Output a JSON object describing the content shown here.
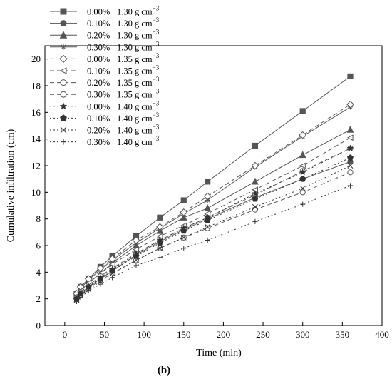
{
  "figure": {
    "panel_label": "(b)"
  },
  "chart_data": {
    "type": "line",
    "xlabel": "Time (min)",
    "ylabel": "Cumulative infiltration (cm)",
    "xlim": [
      -25,
      400
    ],
    "ylim": [
      0,
      21
    ],
    "xticks": [
      0,
      50,
      100,
      150,
      200,
      250,
      300,
      350,
      400
    ],
    "yticks": [
      0,
      2,
      4,
      6,
      8,
      10,
      12,
      14,
      16,
      18,
      20
    ],
    "grid": false,
    "legend_position": "top-left",
    "legend_unit_prefix": "g cm",
    "legend_unit_exp": "−3",
    "x": [
      15,
      20,
      30,
      45,
      60,
      90,
      120,
      150,
      180,
      240,
      300,
      360
    ],
    "series": [
      {
        "name": "0.00%",
        "density": "1.30",
        "marker": "square",
        "dash": "solid",
        "color": "#555555",
        "values": [
          2.4,
          2.9,
          3.5,
          4.4,
          5.2,
          6.7,
          8.1,
          9.4,
          10.8,
          13.5,
          16.1,
          18.7
        ]
      },
      {
        "name": "0.10%",
        "density": "1.30",
        "marker": "circle",
        "dash": "solid",
        "color": "#555555",
        "values": [
          2.1,
          2.4,
          2.9,
          3.5,
          4.1,
          5.3,
          6.3,
          7.2,
          8.0,
          9.6,
          11.0,
          12.3
        ]
      },
      {
        "name": "0.20%",
        "density": "1.30",
        "marker": "triangle",
        "dash": "solid",
        "color": "#555555",
        "values": [
          2.2,
          2.6,
          3.2,
          3.9,
          4.7,
          6.0,
          7.1,
          8.1,
          8.8,
          10.8,
          12.8,
          14.7
        ]
      },
      {
        "name": "0.30%",
        "density": "1.30",
        "marker": "star",
        "dash": "solid",
        "color": "#555555",
        "values": [
          2.3,
          2.8,
          3.4,
          4.2,
          4.9,
          6.2,
          7.3,
          8.4,
          9.4,
          11.9,
          14.2,
          16.4
        ]
      },
      {
        "name": "0.00%",
        "density": "1.35",
        "marker": "diamond-open",
        "dash": "6,4",
        "color": "#555555",
        "values": [
          2.4,
          2.9,
          3.5,
          4.3,
          5.0,
          6.4,
          7.4,
          8.5,
          9.7,
          12.0,
          14.3,
          16.6
        ]
      },
      {
        "name": "0.10%",
        "density": "1.35",
        "marker": "triangle-left-open",
        "dash": "6,4",
        "color": "#555555",
        "values": [
          2.2,
          2.6,
          3.2,
          3.9,
          4.6,
          5.7,
          6.7,
          7.5,
          8.4,
          10.2,
          12.0,
          14.1
        ]
      },
      {
        "name": "0.20%",
        "density": "1.35",
        "marker": "circle-open",
        "dash": "6,4",
        "color": "#555555",
        "values": [
          2.1,
          2.5,
          3.0,
          3.7,
          4.3,
          5.4,
          6.4,
          7.3,
          8.1,
          9.8,
          11.6,
          13.3
        ]
      },
      {
        "name": "0.30%",
        "density": "1.35",
        "marker": "circle-open",
        "dash": "6,4",
        "color": "#555555",
        "values": [
          2.0,
          2.3,
          2.8,
          3.4,
          3.9,
          4.9,
          5.8,
          6.6,
          7.3,
          8.7,
          10.0,
          11.5
        ]
      },
      {
        "name": "0.00%",
        "density": "1.40",
        "marker": "star-filled",
        "dash": "2,3",
        "color": "#333333",
        "values": [
          2.0,
          2.4,
          2.9,
          3.6,
          4.2,
          5.4,
          6.4,
          7.3,
          8.1,
          9.9,
          11.5,
          13.3
        ]
      },
      {
        "name": "0.10%",
        "density": "1.40",
        "marker": "pentagon",
        "dash": "2,3",
        "color": "#333333",
        "values": [
          2.0,
          2.4,
          2.9,
          3.5,
          4.1,
          5.2,
          6.2,
          7.1,
          7.9,
          9.5,
          11.0,
          12.6
        ]
      },
      {
        "name": "0.20%",
        "density": "1.40",
        "marker": "x",
        "dash": "2,3",
        "color": "#333333",
        "values": [
          1.9,
          2.3,
          2.7,
          3.3,
          3.9,
          4.9,
          5.8,
          6.6,
          7.4,
          8.9,
          10.3,
          12.0
        ]
      },
      {
        "name": "0.30%",
        "density": "1.40",
        "marker": "plus",
        "dash": "2,3",
        "color": "#333333",
        "values": [
          1.8,
          2.1,
          2.6,
          3.1,
          3.6,
          4.5,
          5.1,
          5.8,
          6.4,
          7.8,
          9.1,
          10.5
        ]
      }
    ]
  }
}
